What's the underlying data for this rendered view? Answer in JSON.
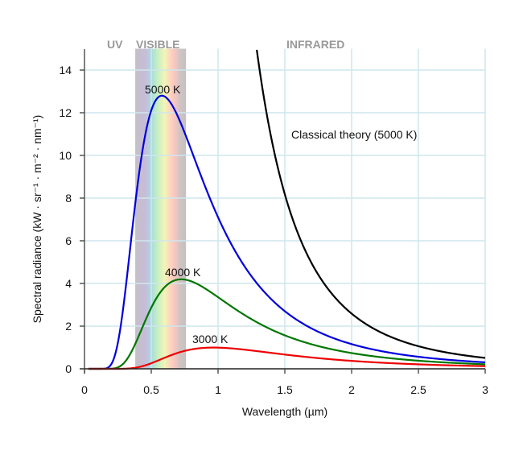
{
  "chart_data": {
    "type": "line",
    "xlabel": "Wavelength (µm)",
    "ylabel": "Spectral radiance (kW · sr⁻¹ · m⁻² · nm⁻¹)",
    "xlim": [
      0,
      3
    ],
    "ylim": [
      0,
      15
    ],
    "x_ticks": [
      "0",
      "0.5",
      "1",
      "1.5",
      "2",
      "2.5",
      "3"
    ],
    "x_tick_values": [
      0,
      0.5,
      1,
      1.5,
      2,
      2.5,
      3
    ],
    "y_ticks": [
      "0",
      "2",
      "4",
      "6",
      "8",
      "10",
      "12",
      "14"
    ],
    "y_tick_values": [
      0,
      2,
      4,
      6,
      8,
      10,
      12,
      14
    ],
    "grid": true,
    "regions": [
      {
        "label": "UV"
      },
      {
        "label": "VISIBLE",
        "from": 0.38,
        "to": 0.76
      },
      {
        "label": "INFRARED"
      }
    ],
    "series": [
      {
        "name": "5000 K",
        "label": "5000 K",
        "temperature": 5000,
        "model": "planck",
        "color": "#0000dd",
        "peak": 12.7
      },
      {
        "name": "4000 K",
        "label": "4000 K",
        "temperature": 4000,
        "model": "planck",
        "color": "#007700",
        "peak": 4.2
      },
      {
        "name": "3000 K",
        "label": "3000 K",
        "temperature": 3000,
        "model": "planck",
        "color": "#ee0000",
        "peak": 1.0
      },
      {
        "name": "Classical theory (5000 K)",
        "label": "Classical theory (5000 K)",
        "temperature": 5000,
        "model": "rayleigh-jeans",
        "color": "#000000"
      }
    ]
  }
}
